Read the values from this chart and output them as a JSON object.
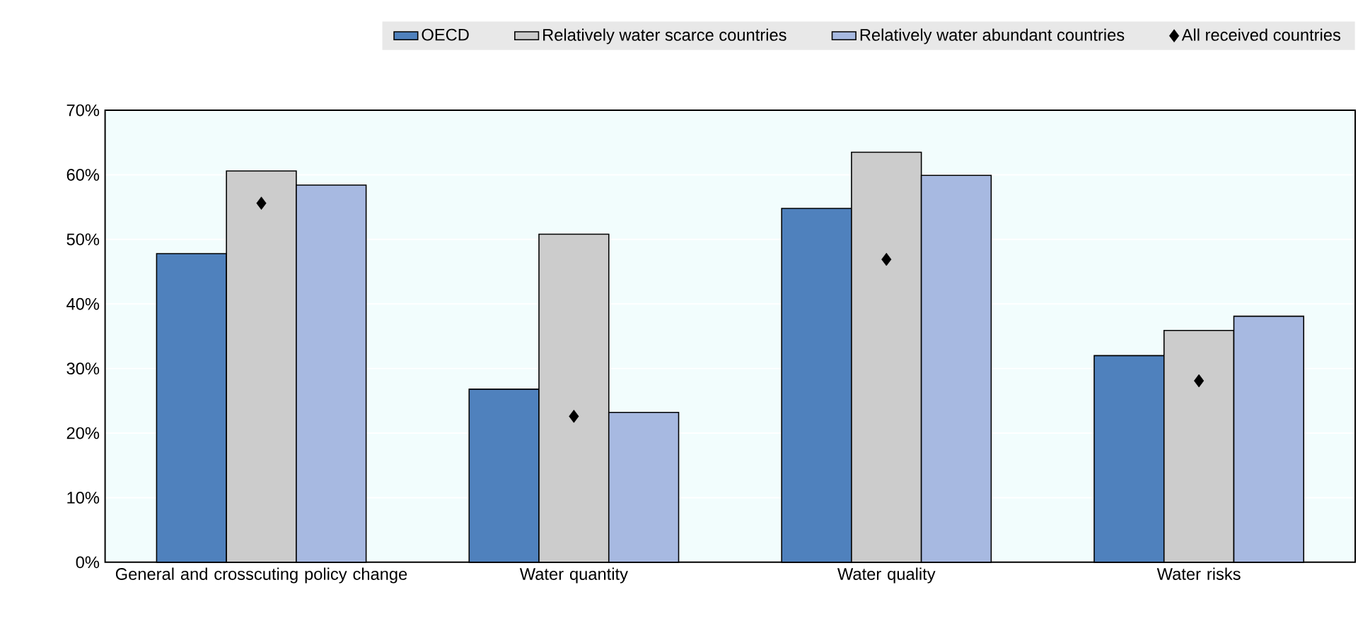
{
  "chart_data": {
    "type": "bar",
    "categories": [
      "General and crosscuting policy change",
      "Water quantity",
      "Water quality",
      "Water risks"
    ],
    "series": [
      {
        "name": "OECD",
        "color": "#4f81bd",
        "values": [
          47.8,
          26.8,
          54.8,
          32.0
        ]
      },
      {
        "name": "Relatively water scarce countries",
        "color": "#cccccc",
        "values": [
          60.6,
          50.8,
          63.5,
          35.9
        ]
      },
      {
        "name": "Relatively water abundant countries",
        "color": "#a7b9e1",
        "values": [
          58.4,
          23.2,
          59.9,
          38.1
        ]
      },
      {
        "name": "All received countries",
        "color": "#000000",
        "type": "scatter",
        "marker": "diamond",
        "x": [
          "General and crosscuting policy change",
          "Water quantity",
          "Water quality",
          "Water risks"
        ],
        "values": [
          55.6,
          22.6,
          46.9,
          28.1
        ]
      }
    ],
    "ylim": [
      0,
      70
    ],
    "yticks": [
      {
        "value": 0,
        "label": "0%"
      },
      {
        "value": 10,
        "label": "10%"
      },
      {
        "value": 20,
        "label": "20%"
      },
      {
        "value": 30,
        "label": "30%"
      },
      {
        "value": 40,
        "label": "40%"
      },
      {
        "value": 50,
        "label": "50%"
      },
      {
        "value": 60,
        "label": "60%"
      },
      {
        "value": 70,
        "label": "70%"
      }
    ],
    "grid": "y",
    "legend": "top"
  }
}
